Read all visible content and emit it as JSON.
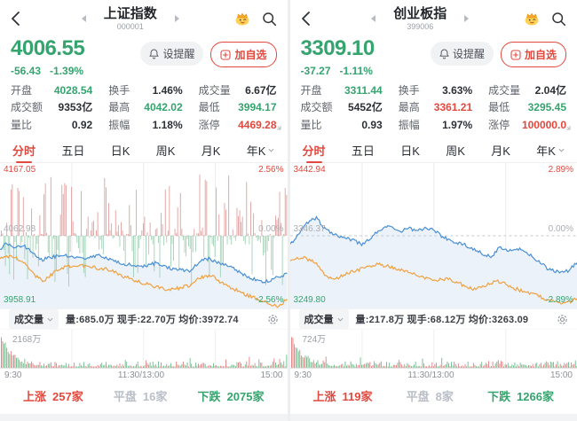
{
  "page": {
    "colors": {
      "up": "#e2483d",
      "down": "#35a46f",
      "flat": "#b9bec7",
      "neutral": "#2b2f36"
    }
  },
  "panels": [
    {
      "header": {
        "title": "上证指数",
        "code": "000001"
      },
      "price": {
        "value": "4006.55",
        "change": "-56.43",
        "change_pct": "-1.39%",
        "color": "#35a46f"
      },
      "buttons": {
        "alert": "设提醒",
        "watch": "加自选"
      },
      "stats": [
        {
          "label": "开盘",
          "value": "4028.54",
          "color": "#35a46f"
        },
        {
          "label": "换手",
          "value": "1.46%",
          "color": "#2b2f36"
        },
        {
          "label": "成交量",
          "value": "6.67亿",
          "color": "#2b2f36"
        },
        {
          "label": "成交额",
          "value": "9353亿",
          "color": "#2b2f36"
        },
        {
          "label": "最高",
          "value": "4042.02",
          "color": "#35a46f"
        },
        {
          "label": "最低",
          "value": "3994.17",
          "color": "#35a46f"
        },
        {
          "label": "量比",
          "value": "0.92",
          "color": "#2b2f36"
        },
        {
          "label": "振幅",
          "value": "1.18%",
          "color": "#2b2f36"
        },
        {
          "label": "涨停",
          "value": "4469.28",
          "color": "#e2483d"
        }
      ],
      "tabs": [
        "分时",
        "五日",
        "日K",
        "周K",
        "月K",
        "年K"
      ],
      "volume": {
        "name": "成交量",
        "info": "量:685.0万 现手:22.70万 均价:3972.74"
      },
      "time_axis": [
        "9:30",
        "11:30/13:00",
        "15:00"
      ],
      "breadth": {
        "up_label": "上涨",
        "up_value": "257家",
        "flat_label": "平盘",
        "flat_value": "16家",
        "down_label": "下跌",
        "down_value": "2075家"
      }
    },
    {
      "header": {
        "title": "创业板指",
        "code": "399006"
      },
      "price": {
        "value": "3309.10",
        "change": "-37.27",
        "change_pct": "-1.11%",
        "color": "#35a46f"
      },
      "buttons": {
        "alert": "设提醒",
        "watch": "加自选"
      },
      "stats": [
        {
          "label": "开盘",
          "value": "3311.44",
          "color": "#35a46f"
        },
        {
          "label": "换手",
          "value": "3.63%",
          "color": "#2b2f36"
        },
        {
          "label": "成交量",
          "value": "2.04亿",
          "color": "#2b2f36"
        },
        {
          "label": "成交额",
          "value": "5452亿",
          "color": "#2b2f36"
        },
        {
          "label": "最高",
          "value": "3361.21",
          "color": "#e2483d"
        },
        {
          "label": "最低",
          "value": "3295.45",
          "color": "#35a46f"
        },
        {
          "label": "量比",
          "value": "0.93",
          "color": "#2b2f36"
        },
        {
          "label": "振幅",
          "value": "1.97%",
          "color": "#2b2f36"
        },
        {
          "label": "涨停",
          "value": "100000.0",
          "color": "#e2483d"
        }
      ],
      "tabs": [
        "分时",
        "五日",
        "日K",
        "周K",
        "月K",
        "年K"
      ],
      "volume": {
        "name": "成交量",
        "info": "量:217.8万 现手:68.12万 均价:3263.09"
      },
      "time_axis": [
        "9:30",
        "11:30/13:00",
        "15:00"
      ],
      "breadth": {
        "up_label": "上涨",
        "up_value": "119家",
        "flat_label": "平盘",
        "flat_value": "8家",
        "down_label": "下跌",
        "down_value": "1266家"
      }
    }
  ],
  "chart_data": [
    {
      "type": "line",
      "title": "上证指数 分时图",
      "x_ticks": [
        "9:30",
        "11:30/13:00",
        "15:00"
      ],
      "y_axis": {
        "max_pct": 2.56,
        "top": {
          "value": "4167.05",
          "pct": "2.56%"
        },
        "mid": {
          "value": "4062.98",
          "pct": "0.00%"
        },
        "bottom": {
          "value": "3958.91",
          "pct": "-2.56%"
        }
      },
      "updown_bars": true,
      "seed": 20251,
      "series": [
        {
          "name": "价格",
          "color": "#4a8fd4",
          "waypoints": [
            [
              0,
              -0.5
            ],
            [
              0.02,
              -0.3
            ],
            [
              0.05,
              -0.42
            ],
            [
              0.08,
              -0.35
            ],
            [
              0.11,
              -0.55
            ],
            [
              0.14,
              -0.9
            ],
            [
              0.18,
              -0.8
            ],
            [
              0.22,
              -0.7
            ],
            [
              0.26,
              -0.78
            ],
            [
              0.3,
              -0.88
            ],
            [
              0.34,
              -0.72
            ],
            [
              0.38,
              -0.85
            ],
            [
              0.42,
              -1.0
            ],
            [
              0.46,
              -1.1
            ],
            [
              0.5,
              -1.15
            ],
            [
              0.54,
              -1.02
            ],
            [
              0.58,
              -1.18
            ],
            [
              0.62,
              -1.25
            ],
            [
              0.66,
              -1.32
            ],
            [
              0.7,
              -0.92
            ],
            [
              0.73,
              -0.85
            ],
            [
              0.76,
              -1.0
            ],
            [
              0.8,
              -1.1
            ],
            [
              0.84,
              -1.4
            ],
            [
              0.88,
              -1.6
            ],
            [
              0.92,
              -1.72
            ],
            [
              0.95,
              -1.6
            ],
            [
              0.98,
              -1.5
            ],
            [
              1,
              -1.39
            ]
          ]
        },
        {
          "name": "均价",
          "color": "#f0a13e",
          "waypoints": [
            [
              0,
              -0.85
            ],
            [
              0.04,
              -0.72
            ],
            [
              0.08,
              -0.95
            ],
            [
              0.12,
              -1.45
            ],
            [
              0.15,
              -1.7
            ],
            [
              0.19,
              -1.35
            ],
            [
              0.23,
              -1.15
            ],
            [
              0.28,
              -1.1
            ],
            [
              0.33,
              -1.18
            ],
            [
              0.38,
              -1.25
            ],
            [
              0.43,
              -1.5
            ],
            [
              0.48,
              -1.7
            ],
            [
              0.53,
              -1.85
            ],
            [
              0.58,
              -2.0
            ],
            [
              0.62,
              -1.95
            ],
            [
              0.66,
              -1.85
            ],
            [
              0.7,
              -1.55
            ],
            [
              0.74,
              -1.5
            ],
            [
              0.78,
              -1.8
            ],
            [
              0.82,
              -2.0
            ],
            [
              0.86,
              -2.2
            ],
            [
              0.9,
              -2.35
            ],
            [
              0.94,
              -2.55
            ],
            [
              0.97,
              -2.62
            ],
            [
              1,
              -2.35
            ]
          ]
        }
      ],
      "volume": {
        "max_label": "2168万",
        "seed": 51,
        "bar_colors": {
          "up": "#df8080",
          "down": "#6fbb8c"
        }
      }
    },
    {
      "type": "line",
      "title": "创业板指 分时图",
      "x_ticks": [
        "9:30",
        "11:30/13:00",
        "15:00"
      ],
      "y_axis": {
        "max_pct": 2.89,
        "top": {
          "value": "3442.94",
          "pct": "2.89%"
        },
        "mid": {
          "value": "3346.37",
          "pct": "0.00%"
        },
        "bottom": {
          "value": "3249.80",
          "pct": "-2.89%"
        }
      },
      "updown_bars": false,
      "seed": 777,
      "series": [
        {
          "name": "价格",
          "color": "#4a8fd4",
          "waypoints": [
            [
              0,
              -0.35
            ],
            [
              0.03,
              0.1
            ],
            [
              0.06,
              0.55
            ],
            [
              0.09,
              0.75
            ],
            [
              0.12,
              0.3
            ],
            [
              0.15,
              0.1
            ],
            [
              0.18,
              -0.05
            ],
            [
              0.22,
              -0.2
            ],
            [
              0.25,
              -0.38
            ],
            [
              0.28,
              -0.1
            ],
            [
              0.31,
              0.25
            ],
            [
              0.34,
              0.4
            ],
            [
              0.38,
              0.15
            ],
            [
              0.41,
              0.35
            ],
            [
              0.44,
              0.2
            ],
            [
              0.47,
              0.32
            ],
            [
              0.5,
              0.25
            ],
            [
              0.53,
              -0.05
            ],
            [
              0.56,
              -0.2
            ],
            [
              0.6,
              -0.35
            ],
            [
              0.64,
              -0.55
            ],
            [
              0.67,
              -0.75
            ],
            [
              0.7,
              -0.9
            ],
            [
              0.73,
              -0.45
            ],
            [
              0.76,
              -0.6
            ],
            [
              0.79,
              -0.55
            ],
            [
              0.82,
              -0.65
            ],
            [
              0.86,
              -1.05
            ],
            [
              0.9,
              -1.4
            ],
            [
              0.94,
              -1.55
            ],
            [
              0.97,
              -1.45
            ],
            [
              1,
              -1.11
            ]
          ]
        },
        {
          "name": "均价",
          "color": "#f0a13e",
          "waypoints": [
            [
              0,
              -1.05
            ],
            [
              0.04,
              -0.9
            ],
            [
              0.08,
              -1.05
            ],
            [
              0.12,
              -1.6
            ],
            [
              0.15,
              -1.85
            ],
            [
              0.19,
              -1.6
            ],
            [
              0.23,
              -1.45
            ],
            [
              0.27,
              -1.3
            ],
            [
              0.31,
              -1.2
            ],
            [
              0.35,
              -1.3
            ],
            [
              0.4,
              -1.45
            ],
            [
              0.45,
              -1.7
            ],
            [
              0.5,
              -1.85
            ],
            [
              0.55,
              -1.8
            ],
            [
              0.6,
              -2.05
            ],
            [
              0.64,
              -2.25
            ],
            [
              0.68,
              -2.1
            ],
            [
              0.71,
              -1.9
            ],
            [
              0.74,
              -1.95
            ],
            [
              0.78,
              -2.2
            ],
            [
              0.82,
              -2.35
            ],
            [
              0.86,
              -2.5
            ],
            [
              0.9,
              -2.7
            ],
            [
              0.95,
              -2.88
            ],
            [
              1,
              -2.62
            ]
          ]
        }
      ],
      "volume": {
        "max_label": "724万",
        "seed": 93,
        "bar_colors": {
          "up": "#df8080",
          "down": "#6fbb8c"
        }
      }
    }
  ]
}
